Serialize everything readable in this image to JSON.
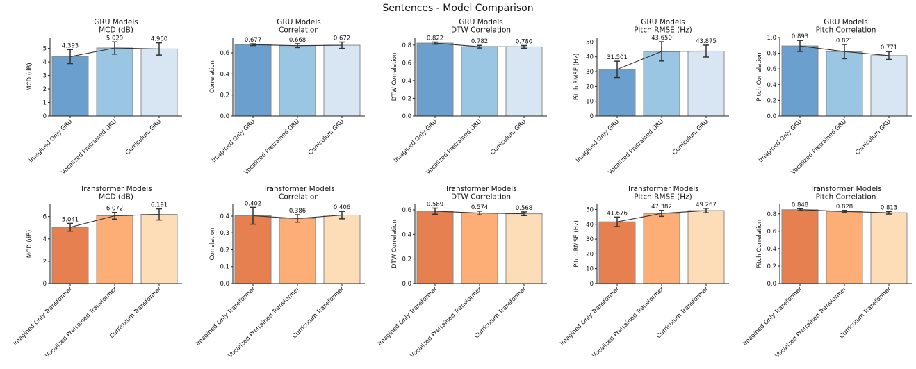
{
  "title": "Sentences - Model Comparison",
  "colors": {
    "gru": [
      "#6a9fce",
      "#9bc6e3",
      "#d8e6f3"
    ],
    "transformer": [
      "#e68050",
      "#fdae76",
      "#fddcb8"
    ],
    "error": "#333333",
    "edge": "#8a8a8a"
  },
  "chart_data": [
    {
      "type": "bar",
      "group": "GRU Models",
      "metric": "MCD (dB)",
      "title": "GRU Models\nMCD (dB)",
      "ylabel": "MCD (dB)",
      "categories": [
        "Imagined Only GRU",
        "Vocalized Pretrained GRU",
        "Curriculum GRU"
      ],
      "values": [
        4.393,
        5.029,
        4.96
      ],
      "errors": [
        0.52,
        0.45,
        0.45
      ],
      "ylim": [
        0,
        5.8
      ],
      "yticks": [
        0,
        1,
        2,
        3,
        4,
        5
      ],
      "tick_decimals": 0
    },
    {
      "type": "bar",
      "group": "GRU Models",
      "metric": "Correlation",
      "title": "GRU Models\nCorrelation",
      "ylabel": "Correlation",
      "categories": [
        "Imagined Only GRU",
        "Vocalized Pretrained GRU",
        "Curriculum GRU"
      ],
      "values": [
        0.677,
        0.668,
        0.672
      ],
      "errors": [
        0.008,
        0.018,
        0.03
      ],
      "ylim": [
        0,
        0.745
      ],
      "yticks": [
        0,
        0.2,
        0.4,
        0.6
      ],
      "tick_decimals": 1
    },
    {
      "type": "bar",
      "group": "GRU Models",
      "metric": "DTW Correlation",
      "title": "GRU Models\nDTW Correlation",
      "ylabel": "DTW Correlation",
      "categories": [
        "Imagined Only GRU",
        "Vocalized Pretrained GRU",
        "Curriculum GRU"
      ],
      "values": [
        0.822,
        0.782,
        0.78
      ],
      "errors": [
        0.012,
        0.015,
        0.015
      ],
      "ylim": [
        0,
        0.885
      ],
      "yticks": [
        0,
        0.2,
        0.4,
        0.6,
        0.8
      ],
      "tick_decimals": 1
    },
    {
      "type": "bar",
      "group": "GRU Models",
      "metric": "Pitch RMSE (Hz)",
      "title": "GRU Models\nPitch RMSE (Hz)",
      "ylabel": "Pitch RMSE (Hz)",
      "categories": [
        "Imagined Only GRU",
        "Vocalized Pretrained GRU",
        "Curriculum GRU"
      ],
      "values": [
        31.501,
        43.65,
        43.875
      ],
      "errors": [
        5.5,
        6.5,
        4
      ],
      "ylim": [
        0,
        53
      ],
      "yticks": [
        0,
        10,
        20,
        30,
        40,
        50
      ],
      "tick_decimals": 0
    },
    {
      "type": "bar",
      "group": "GRU Models",
      "metric": "Pitch Correlation",
      "title": "GRU Models\nPitch Correlation",
      "ylabel": "Pitch Correlation",
      "categories": [
        "Imagined Only GRU",
        "Vocalized Pretrained GRU",
        "Curriculum GRU"
      ],
      "values": [
        0.893,
        0.821,
        0.771
      ],
      "errors": [
        0.07,
        0.09,
        0.05
      ],
      "ylim": [
        0,
        1.0
      ],
      "yticks": [
        0,
        0.2,
        0.4,
        0.6,
        0.8,
        1.0
      ],
      "tick_decimals": 1
    },
    {
      "type": "bar",
      "group": "Transformer Models",
      "metric": "MCD (dB)",
      "title": "Transformer Models\nMCD (dB)",
      "ylabel": "MCD (dB)",
      "categories": [
        "Imagined Only Transformer",
        "Vocalized Pretrained Transformer",
        "Curriculum Transformer"
      ],
      "values": [
        5.041,
        6.072,
        6.191
      ],
      "errors": [
        0.35,
        0.3,
        0.5
      ],
      "ylim": [
        0,
        7.1
      ],
      "yticks": [
        0,
        2,
        4,
        6
      ],
      "tick_decimals": 0
    },
    {
      "type": "bar",
      "group": "Transformer Models",
      "metric": "Correlation",
      "title": "Transformer Models\nCorrelation",
      "ylabel": "Correlation",
      "categories": [
        "Imagined Only Transformer",
        "Vocalized Pretrained Transformer",
        "Curriculum Transformer"
      ],
      "values": [
        0.402,
        0.386,
        0.406
      ],
      "errors": [
        0.05,
        0.022,
        0.022
      ],
      "ylim": [
        0,
        0.47
      ],
      "yticks": [
        0,
        0.1,
        0.2,
        0.3,
        0.4
      ],
      "tick_decimals": 1
    },
    {
      "type": "bar",
      "group": "Transformer Models",
      "metric": "DTW Correlation",
      "title": "Transformer Models\nDTW Correlation",
      "ylabel": "DTW Correlation",
      "categories": [
        "Imagined Only Transformer",
        "Vocalized Pretrained Transformer",
        "Curriculum Transformer"
      ],
      "values": [
        0.589,
        0.574,
        0.568
      ],
      "errors": [
        0.025,
        0.015,
        0.015
      ],
      "ylim": [
        0,
        0.645
      ],
      "yticks": [
        0,
        0.2,
        0.4,
        0.6
      ],
      "tick_decimals": 1
    },
    {
      "type": "bar",
      "group": "Transformer Models",
      "metric": "Pitch RMSE (Hz)",
      "title": "Transformer Models\nPitch RMSE (Hz)",
      "ylabel": "Pitch RMSE (Hz)",
      "categories": [
        "Imagined Only Transformer",
        "Vocalized Pretrained Transformer",
        "Curriculum Transformer"
      ],
      "values": [
        41.676,
        47.382,
        49.267
      ],
      "errors": [
        3.2,
        2,
        1.5
      ],
      "ylim": [
        0,
        53.5
      ],
      "yticks": [
        0,
        10,
        20,
        30,
        40,
        50
      ],
      "tick_decimals": 0
    },
    {
      "type": "bar",
      "group": "Transformer Models",
      "metric": "Pitch Correlation",
      "title": "Transformer Models\nPitch Correlation",
      "ylabel": "Pitch Correlation",
      "categories": [
        "Imagined Only Transformer",
        "Vocalized Pretrained Transformer",
        "Curriculum Transformer"
      ],
      "values": [
        0.848,
        0.828,
        0.813
      ],
      "errors": [
        0.012,
        0.012,
        0.015
      ],
      "ylim": [
        0,
        0.91
      ],
      "yticks": [
        0,
        0.2,
        0.4,
        0.6,
        0.8
      ],
      "tick_decimals": 1
    }
  ]
}
